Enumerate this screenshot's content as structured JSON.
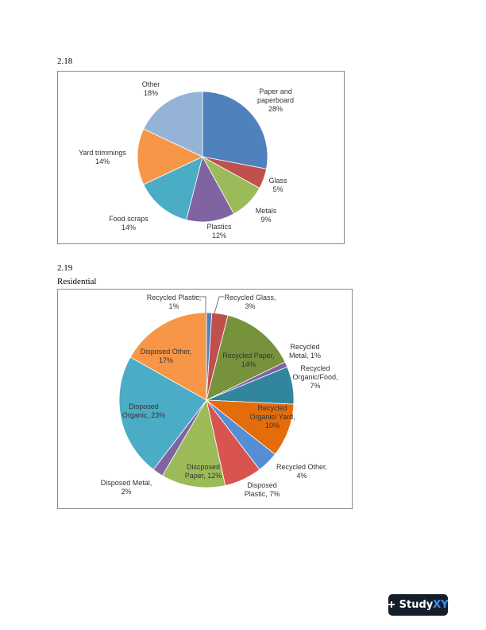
{
  "sections": [
    {
      "number": "2.18",
      "subtitle": ""
    },
    {
      "number": "2.19",
      "subtitle": "Residential"
    }
  ],
  "chart_data": [
    {
      "type": "pie",
      "title": "",
      "legend": "none",
      "slices": [
        {
          "label": "Paper and paperboard",
          "lines": [
            "Paper and",
            "paperboard",
            "28%"
          ],
          "value": 28,
          "color": "#4f81bd"
        },
        {
          "label": "Glass",
          "lines": [
            "Glass",
            "5%"
          ],
          "value": 5,
          "color": "#c0504d"
        },
        {
          "label": "Metals",
          "lines": [
            "Metals",
            "9%"
          ],
          "value": 9,
          "color": "#9bbb59"
        },
        {
          "label": "Plastics",
          "lines": [
            "Plastics",
            "12%"
          ],
          "value": 12,
          "color": "#8064a2"
        },
        {
          "label": "Food scraps",
          "lines": [
            "Food scraps",
            "14%"
          ],
          "value": 14,
          "color": "#4bacc6"
        },
        {
          "label": "Yard trimmings",
          "lines": [
            "Yard trimmings",
            "14%"
          ],
          "value": 14,
          "color": "#f79646"
        },
        {
          "label": "Other",
          "lines": [
            "Other",
            "18%"
          ],
          "value": 18,
          "color": "#95b3d7"
        }
      ]
    },
    {
      "type": "pie",
      "title": "",
      "legend": "none",
      "slices": [
        {
          "label": "Recycled Plastic",
          "lines": [
            "Recycled Plastic,",
            "1%"
          ],
          "value": 1,
          "color": "#4f81bd"
        },
        {
          "label": "Recycled Glass",
          "lines": [
            "Recycled Glass,",
            "3%"
          ],
          "value": 3,
          "color": "#c0504d"
        },
        {
          "label": "Recycled Paper",
          "lines": [
            "Recycled Paper,",
            "14%"
          ],
          "value": 14,
          "color": "#76923c"
        },
        {
          "label": "Recycled Metal",
          "lines": [
            "Recycled",
            "Metal, 1%"
          ],
          "value": 1,
          "color": "#8064a2"
        },
        {
          "label": "Recycled Organic/Food",
          "lines": [
            "Recycled",
            "Organic/Food,",
            "7%"
          ],
          "value": 7,
          "color": "#31859c"
        },
        {
          "label": "Recycled Organic/ Yard",
          "lines": [
            "Recycled",
            "Organic/ Yard,",
            "10%"
          ],
          "value": 10,
          "color": "#e46c0a"
        },
        {
          "label": "Recycled Other",
          "lines": [
            "Recycled Other,",
            "4%"
          ],
          "value": 4,
          "color": "#558ed5"
        },
        {
          "label": "Disposed Plastic",
          "lines": [
            "Disposed",
            "Plastic, 7%"
          ],
          "value": 7,
          "color": "#d9534f"
        },
        {
          "label": "Discposed Paper",
          "lines": [
            "Discposed",
            "Paper, 12%"
          ],
          "value": 12,
          "color": "#9bbb59"
        },
        {
          "label": "Disposed Metal",
          "lines": [
            "Disposed Metal,",
            "2%"
          ],
          "value": 2,
          "color": "#8064a2"
        },
        {
          "label": "Disposed Organic",
          "lines": [
            "Disposed",
            "Organic, 23%"
          ],
          "value": 23,
          "color": "#4bacc6"
        },
        {
          "label": "Disposed Other",
          "lines": [
            "Disposed Other,",
            "17%"
          ],
          "value": 17,
          "color": "#f79646"
        }
      ]
    }
  ],
  "logo": {
    "plus": "+",
    "text_main": "Study",
    "text_accent": "XY"
  }
}
